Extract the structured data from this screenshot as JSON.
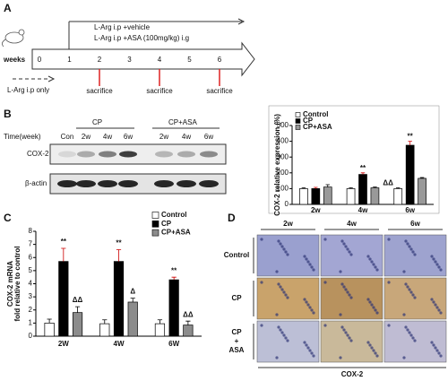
{
  "panel_labels": [
    "A",
    "B",
    "C",
    "D"
  ],
  "timeline": {
    "treatment_lines": [
      "L-Arg i.p +vehicle",
      "L-Arg i.p +ASA (100mg/kg) i.g"
    ],
    "axis_label": "weeks",
    "weeks": [
      0,
      1,
      2,
      3,
      4,
      5,
      6
    ],
    "events": [
      "sacrifice",
      "sacrifice",
      "sacrifice"
    ],
    "pre_treatment": "L-Arg i.p only"
  },
  "blot": {
    "groups": [
      "CP",
      "CP+ASA"
    ],
    "row_label": "Time(week)",
    "lanes": [
      "Con",
      "2w",
      "4w",
      "6w",
      "2w",
      "4w",
      "6w"
    ],
    "proteins": [
      "COX-2",
      "β-actin"
    ]
  },
  "chart_data": [
    {
      "type": "bar",
      "y_label": [
        "COX-2 relative expression (%)"
      ],
      "categories": [
        "2w",
        "4w",
        "6w"
      ],
      "ylim": [
        0,
        500
      ],
      "yticks": [
        0,
        100,
        200,
        300,
        400,
        500
      ],
      "series": [
        {
          "name": "Control",
          "color": "#ffffff",
          "values": [
            100,
            100,
            100
          ],
          "errors": [
            5,
            5,
            5
          ],
          "significance": [
            null,
            null,
            null
          ]
        },
        {
          "name": "CP",
          "color": "#000000",
          "values": [
            100,
            190,
            375
          ],
          "errors": [
            8,
            10,
            25
          ],
          "significance": [
            null,
            "**",
            "**"
          ]
        },
        {
          "name": "CP+ASA",
          "color": "#999999",
          "values": [
            110,
            105,
            165
          ],
          "errors": [
            15,
            5,
            5
          ],
          "significance": [
            null,
            "ΔΔ",
            null
          ]
        }
      ]
    },
    {
      "type": "bar",
      "y_label": [
        "COX-2  mRNA",
        "fold relative to control"
      ],
      "categories": [
        "2W",
        "4W",
        "6W"
      ],
      "ylim": [
        0,
        8
      ],
      "yticks": [
        0,
        1,
        2,
        3,
        4,
        5,
        6,
        7,
        8
      ],
      "series": [
        {
          "name": "Control",
          "color": "#ffffff",
          "values": [
            1.0,
            0.95,
            0.95
          ],
          "errors": [
            0.3,
            0.3,
            0.3
          ],
          "significance": [
            null,
            null,
            null
          ]
        },
        {
          "name": "CP",
          "color": "#000000",
          "values": [
            5.7,
            5.7,
            4.3
          ],
          "errors": [
            1.0,
            0.9,
            0.2
          ],
          "significance": [
            "**",
            "**",
            "**"
          ]
        },
        {
          "name": "CP+ASA",
          "color": "#8c8c8c",
          "values": [
            1.8,
            2.6,
            0.85
          ],
          "errors": [
            0.45,
            0.3,
            0.3
          ],
          "significance": [
            "ΔΔ",
            "Δ",
            "ΔΔ"
          ]
        }
      ]
    }
  ],
  "ihc": {
    "columns": [
      "2w",
      "4w",
      "6w"
    ],
    "rows": [
      [
        "Control"
      ],
      [
        "CP"
      ],
      [
        "CP",
        "+",
        "ASA"
      ]
    ],
    "stain": "COX-2"
  }
}
